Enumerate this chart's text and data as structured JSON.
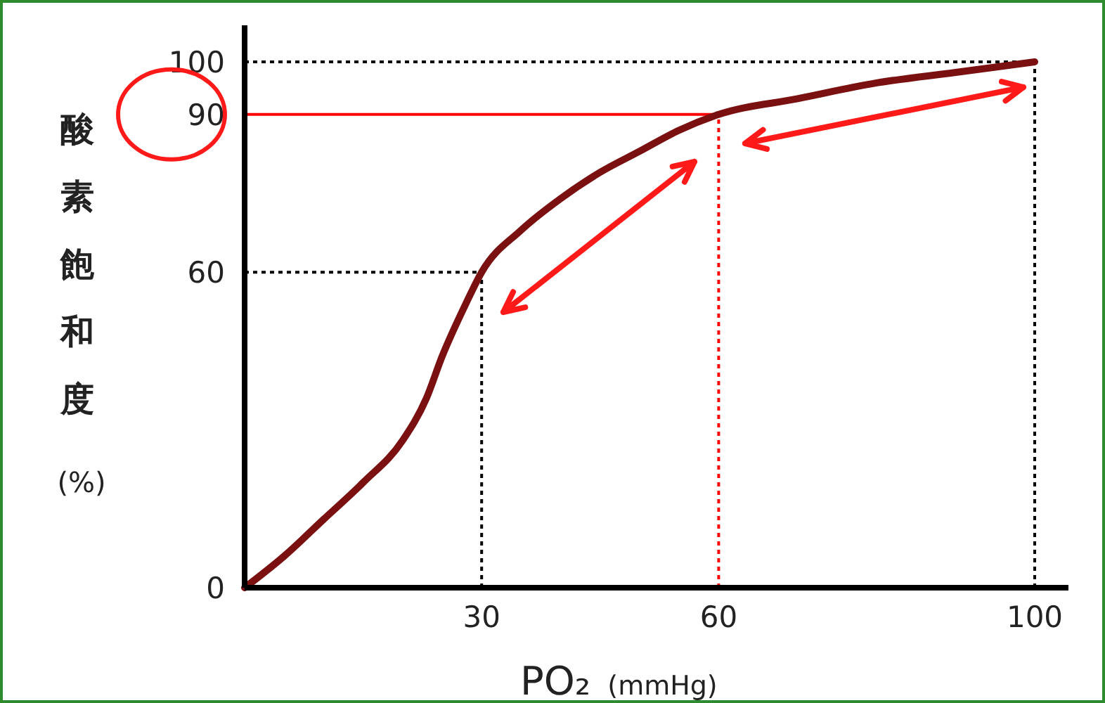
{
  "chart_data": {
    "type": "line",
    "xlabel": "PO₂ (mmHg)",
    "ylabel": "酸素飽和度 (%)",
    "x": [
      0,
      5,
      10,
      15,
      20,
      23,
      25,
      28,
      30,
      35,
      40,
      45,
      50,
      55,
      60,
      70,
      80,
      90,
      100
    ],
    "series": [
      {
        "color": "#7b1010",
        "values": [
          0,
          6,
          13,
          20,
          28,
          36,
          44,
          54,
          60,
          68,
          74,
          79,
          83,
          87,
          90,
          93,
          96,
          98,
          100
        ]
      }
    ],
    "xlim": [
      0,
      100
    ],
    "ylim": [
      0,
      100
    ],
    "xticks": [
      30,
      60,
      100
    ],
    "yticks": [
      0,
      60,
      90,
      100
    ],
    "grid": false,
    "line_style": "solid",
    "ref_lines": [
      {
        "axis": "y",
        "value": 100,
        "color": "#000000",
        "line_style": "dotted"
      },
      {
        "axis": "y",
        "value": 90,
        "color": "#ff0000",
        "line_style": "solid"
      },
      {
        "axis": "y",
        "value": 60,
        "color": "#000000",
        "line_style": "dotted"
      },
      {
        "axis": "x",
        "value": 30,
        "color": "#000000",
        "line_style": "dotted"
      },
      {
        "axis": "x",
        "value": 60,
        "color": "#ff0000",
        "line_style": "dotted"
      },
      {
        "axis": "x",
        "value": 100,
        "color": "#000000",
        "line_style": "dotted"
      }
    ]
  }
}
